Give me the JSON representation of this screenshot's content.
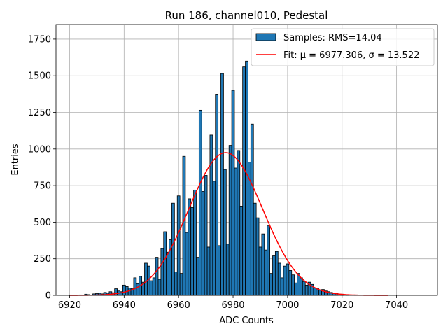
{
  "chart_data": {
    "type": "bar",
    "title": "Run 186, channel010, Pedestal",
    "xlabel": "ADC Counts",
    "ylabel": "Entries",
    "xlim": [
      6915,
      7055
    ],
    "ylim": [
      0,
      1850
    ],
    "x_ticks": [
      6920,
      6940,
      6960,
      6980,
      7000,
      7020,
      7040
    ],
    "y_ticks": [
      0,
      250,
      500,
      750,
      1000,
      1250,
      1500,
      1750
    ],
    "grid": true,
    "legend_position": "top-right",
    "bar_color": "#1f77b4",
    "fit_color": "#ff0000",
    "bin_width": 1,
    "bins": [
      {
        "x": 6924,
        "y": 3
      },
      {
        "x": 6926,
        "y": 8
      },
      {
        "x": 6927,
        "y": 5
      },
      {
        "x": 6929,
        "y": 10
      },
      {
        "x": 6930,
        "y": 12
      },
      {
        "x": 6931,
        "y": 15
      },
      {
        "x": 6932,
        "y": 10
      },
      {
        "x": 6933,
        "y": 20
      },
      {
        "x": 6934,
        "y": 15
      },
      {
        "x": 6935,
        "y": 25
      },
      {
        "x": 6936,
        "y": 18
      },
      {
        "x": 6937,
        "y": 45
      },
      {
        "x": 6938,
        "y": 30
      },
      {
        "x": 6939,
        "y": 25
      },
      {
        "x": 6940,
        "y": 70
      },
      {
        "x": 6941,
        "y": 60
      },
      {
        "x": 6942,
        "y": 50
      },
      {
        "x": 6943,
        "y": 45
      },
      {
        "x": 6944,
        "y": 120
      },
      {
        "x": 6945,
        "y": 80
      },
      {
        "x": 6946,
        "y": 130
      },
      {
        "x": 6947,
        "y": 90
      },
      {
        "x": 6948,
        "y": 220
      },
      {
        "x": 6949,
        "y": 200
      },
      {
        "x": 6950,
        "y": 100
      },
      {
        "x": 6951,
        "y": 120
      },
      {
        "x": 6952,
        "y": 260
      },
      {
        "x": 6953,
        "y": 110
      },
      {
        "x": 6954,
        "y": 320
      },
      {
        "x": 6955,
        "y": 435
      },
      {
        "x": 6956,
        "y": 295
      },
      {
        "x": 6957,
        "y": 380
      },
      {
        "x": 6958,
        "y": 630
      },
      {
        "x": 6959,
        "y": 160
      },
      {
        "x": 6960,
        "y": 680
      },
      {
        "x": 6961,
        "y": 150
      },
      {
        "x": 6962,
        "y": 950
      },
      {
        "x": 6963,
        "y": 430
      },
      {
        "x": 6964,
        "y": 660
      },
      {
        "x": 6965,
        "y": 600
      },
      {
        "x": 6966,
        "y": 720
      },
      {
        "x": 6967,
        "y": 260
      },
      {
        "x": 6968,
        "y": 1265
      },
      {
        "x": 6969,
        "y": 710
      },
      {
        "x": 6970,
        "y": 820
      },
      {
        "x": 6971,
        "y": 330
      },
      {
        "x": 6972,
        "y": 1095
      },
      {
        "x": 6973,
        "y": 780
      },
      {
        "x": 6974,
        "y": 1370
      },
      {
        "x": 6975,
        "y": 340
      },
      {
        "x": 6976,
        "y": 1515
      },
      {
        "x": 6977,
        "y": 860
      },
      {
        "x": 6978,
        "y": 350
      },
      {
        "x": 6979,
        "y": 1025
      },
      {
        "x": 6980,
        "y": 1400
      },
      {
        "x": 6981,
        "y": 870
      },
      {
        "x": 6982,
        "y": 990
      },
      {
        "x": 6983,
        "y": 610
      },
      {
        "x": 6984,
        "y": 1560
      },
      {
        "x": 6985,
        "y": 1600
      },
      {
        "x": 6986,
        "y": 910
      },
      {
        "x": 6987,
        "y": 1170
      },
      {
        "x": 6988,
        "y": 630
      },
      {
        "x": 6989,
        "y": 530
      },
      {
        "x": 6990,
        "y": 330
      },
      {
        "x": 6991,
        "y": 420
      },
      {
        "x": 6992,
        "y": 310
      },
      {
        "x": 6993,
        "y": 475
      },
      {
        "x": 6994,
        "y": 150
      },
      {
        "x": 6995,
        "y": 270
      },
      {
        "x": 6996,
        "y": 300
      },
      {
        "x": 6997,
        "y": 220
      },
      {
        "x": 6998,
        "y": 120
      },
      {
        "x": 6999,
        "y": 200
      },
      {
        "x": 7000,
        "y": 215
      },
      {
        "x": 7001,
        "y": 170
      },
      {
        "x": 7002,
        "y": 140
      },
      {
        "x": 7003,
        "y": 85
      },
      {
        "x": 7004,
        "y": 150
      },
      {
        "x": 7005,
        "y": 120
      },
      {
        "x": 7006,
        "y": 95
      },
      {
        "x": 7007,
        "y": 70
      },
      {
        "x": 7008,
        "y": 90
      },
      {
        "x": 7009,
        "y": 75
      },
      {
        "x": 7010,
        "y": 50
      },
      {
        "x": 7011,
        "y": 45
      },
      {
        "x": 7012,
        "y": 35
      },
      {
        "x": 7013,
        "y": 40
      },
      {
        "x": 7014,
        "y": 30
      },
      {
        "x": 7015,
        "y": 25
      },
      {
        "x": 7016,
        "y": 20
      },
      {
        "x": 7017,
        "y": 15
      },
      {
        "x": 7018,
        "y": 12
      },
      {
        "x": 7020,
        "y": 8
      },
      {
        "x": 7022,
        "y": 5
      },
      {
        "x": 7025,
        "y": 3
      }
    ],
    "fit": {
      "mu": 6977.306,
      "sigma": 13.522,
      "amplitude": 975,
      "x_range": [
        6920,
        7037
      ]
    },
    "legend": [
      {
        "label": "Samples: RMS=14.04"
      },
      {
        "label": "Fit: μ = 6977.306, σ = 13.522"
      }
    ]
  }
}
